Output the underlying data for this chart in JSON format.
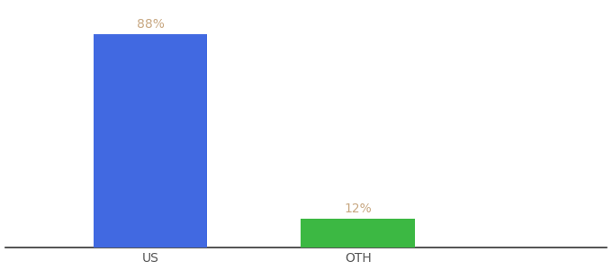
{
  "categories": [
    "US",
    "OTH"
  ],
  "values": [
    88,
    12
  ],
  "bar_colors": [
    "#4169e1",
    "#3cb843"
  ],
  "label_color": "#c8a882",
  "label_fontsize": 10,
  "xlabel_fontsize": 10,
  "xlabel_color": "#555555",
  "background_color": "#ffffff",
  "ylim": [
    0,
    100
  ],
  "bar_width": 0.55,
  "x_positions": [
    1,
    2
  ],
  "xlim": [
    0.3,
    3.2
  ]
}
